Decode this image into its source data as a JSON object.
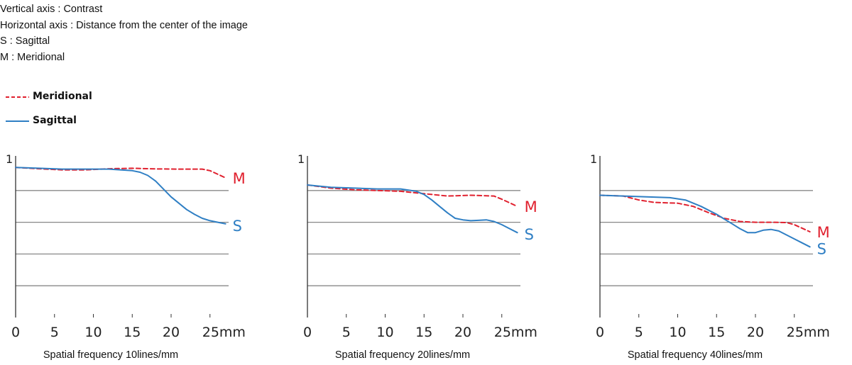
{
  "notes": {
    "vertical": "Vertical axis : Contrast",
    "horizontal": "Horizontal axis : Distance from the center of the image",
    "s": "S : Sagittal",
    "m": "M : Meridional"
  },
  "legend": {
    "meridional": "Meridional",
    "sagittal": "Sagittal"
  },
  "colors": {
    "meridional": "#e0202e",
    "sagittal": "#2f7fc4",
    "grid": "#888888",
    "axis": "#333333"
  },
  "chart_data": [
    {
      "type": "line",
      "title": "Spatial frequency 10lines/mm",
      "ylabel_tick": "1",
      "xlim": [
        0,
        27
      ],
      "ylim": [
        0,
        1
      ],
      "x_ticks": [
        "0",
        "5",
        "10",
        "15",
        "20",
        "25mm"
      ],
      "grid": [
        0.2,
        0.4,
        0.6,
        0.8
      ],
      "series": [
        {
          "name": "M",
          "style": "dashed",
          "x": [
            0,
            3,
            6,
            9,
            12,
            15,
            18,
            21,
            24,
            25,
            27
          ],
          "y": [
            0.945,
            0.937,
            0.93,
            0.93,
            0.937,
            0.94,
            0.936,
            0.935,
            0.935,
            0.925,
            0.88
          ]
        },
        {
          "name": "S",
          "style": "solid",
          "x": [
            0,
            3,
            6,
            9,
            12,
            15,
            16,
            17,
            18,
            19,
            20,
            21,
            22,
            23,
            24,
            25,
            26,
            27
          ],
          "y": [
            0.945,
            0.94,
            0.935,
            0.935,
            0.935,
            0.925,
            0.915,
            0.895,
            0.86,
            0.81,
            0.76,
            0.72,
            0.68,
            0.65,
            0.625,
            0.61,
            0.6,
            0.59
          ]
        }
      ]
    },
    {
      "type": "line",
      "title": "Spatial frequency 20lines/mm",
      "ylabel_tick": "1",
      "xlim": [
        0,
        27
      ],
      "ylim": [
        0,
        1
      ],
      "x_ticks": [
        "0",
        "5",
        "10",
        "15",
        "20",
        "25mm"
      ],
      "grid": [
        0.2,
        0.4,
        0.6,
        0.8
      ],
      "series": [
        {
          "name": "M",
          "style": "dashed",
          "x": [
            0,
            3,
            6,
            9,
            12,
            15,
            18,
            21,
            24,
            25,
            27
          ],
          "y": [
            0.835,
            0.815,
            0.805,
            0.8,
            0.795,
            0.78,
            0.765,
            0.77,
            0.765,
            0.745,
            0.7
          ]
        },
        {
          "name": "S",
          "style": "solid",
          "x": [
            0,
            3,
            6,
            9,
            12,
            14,
            15,
            16,
            17,
            18,
            19,
            20,
            21,
            22,
            23,
            24,
            25,
            26,
            27
          ],
          "y": [
            0.835,
            0.82,
            0.815,
            0.81,
            0.81,
            0.795,
            0.775,
            0.74,
            0.7,
            0.66,
            0.625,
            0.615,
            0.61,
            0.612,
            0.615,
            0.605,
            0.585,
            0.56,
            0.535
          ]
        }
      ]
    },
    {
      "type": "line",
      "title": "Spatial frequency 40lines/mm",
      "ylabel_tick": "1",
      "xlim": [
        0,
        27
      ],
      "ylim": [
        0,
        1
      ],
      "x_ticks": [
        "0",
        "5",
        "10",
        "15",
        "20",
        "25mm"
      ],
      "grid": [
        0.2,
        0.4,
        0.6,
        0.8
      ],
      "series": [
        {
          "name": "M",
          "style": "dashed",
          "x": [
            0,
            3,
            5,
            7,
            10,
            12,
            14,
            16,
            18,
            20,
            22,
            24,
            25,
            27
          ],
          "y": [
            0.77,
            0.765,
            0.74,
            0.725,
            0.72,
            0.7,
            0.66,
            0.625,
            0.605,
            0.6,
            0.6,
            0.598,
            0.585,
            0.54
          ]
        },
        {
          "name": "S",
          "style": "solid",
          "x": [
            0,
            3,
            6,
            9,
            11,
            13,
            15,
            16,
            17,
            18,
            19,
            20,
            21,
            22,
            23,
            24,
            25,
            26,
            27
          ],
          "y": [
            0.77,
            0.765,
            0.76,
            0.755,
            0.74,
            0.7,
            0.65,
            0.62,
            0.59,
            0.56,
            0.535,
            0.535,
            0.55,
            0.555,
            0.545,
            0.52,
            0.495,
            0.47,
            0.445
          ]
        }
      ]
    }
  ]
}
